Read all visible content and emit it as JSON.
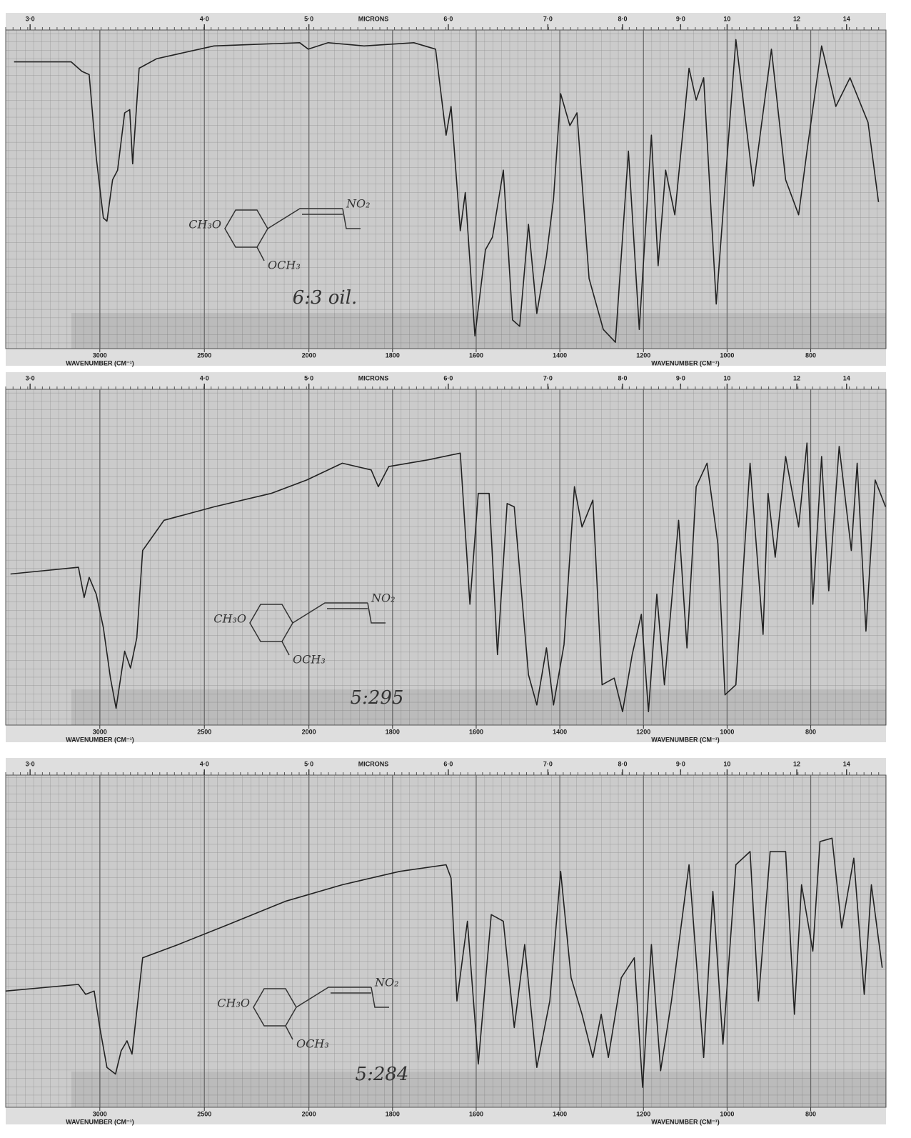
{
  "chart_data": [
    {
      "type": "line",
      "annotation": "6:3 oil.",
      "structure_labels": [
        "NO₂",
        "OCH₃",
        "CH₃O"
      ],
      "x_label": "WAVENUMBER (CM⁻¹)",
      "micron_label": "MICRONS",
      "xlim": [
        3450,
        620
      ],
      "ylim": [
        0,
        100
      ],
      "xticks": [
        3000,
        2500,
        2000,
        1800,
        1600,
        1400,
        1200,
        1000,
        800
      ],
      "micron_ticks": [
        {
          "value": 3,
          "label": "3·0"
        },
        {
          "value": 4,
          "label": "4·0"
        },
        {
          "value": 5,
          "label": "5·0"
        },
        {
          "value": 6,
          "label": "6·0"
        },
        {
          "value": 7,
          "label": "7·0"
        },
        {
          "value": 8,
          "label": "8·0"
        },
        {
          "value": 9,
          "label": "9·0"
        },
        10,
        12,
        14
      ],
      "color": "#222222",
      "x": [
        3410,
        3137,
        3085,
        3051,
        3017,
        2983,
        2966,
        2939,
        2915,
        2881,
        2857,
        2843,
        2812,
        2727,
        2454,
        2044,
        2003,
        1954,
        1868,
        1749,
        1697,
        1672,
        1660,
        1638,
        1626,
        1603,
        1578,
        1561,
        1535,
        1513,
        1496,
        1475,
        1455,
        1432,
        1415,
        1398,
        1376,
        1359,
        1330,
        1296,
        1267,
        1236,
        1210,
        1181,
        1165,
        1147,
        1125,
        1091,
        1074,
        1056,
        1026,
        979,
        937,
        894,
        860,
        829,
        809,
        774,
        740,
        706,
        663,
        638
      ],
      "values": [
        90,
        90,
        87,
        86,
        60,
        41,
        40,
        53,
        56,
        74,
        75,
        58,
        88,
        91,
        95,
        96,
        94,
        96,
        95,
        96,
        94,
        67,
        76,
        37,
        49,
        4,
        31,
        35,
        56,
        9,
        7,
        39,
        11,
        29,
        47,
        80,
        70,
        74,
        22,
        6,
        2,
        62,
        6,
        67,
        26,
        56,
        42,
        88,
        78,
        85,
        14,
        97,
        51,
        94,
        53,
        42,
        62,
        95,
        76,
        85,
        71,
        46
      ]
    },
    {
      "type": "line",
      "annotation": "5:295",
      "structure_labels": [
        "NO₂",
        "OCH₃",
        "CH₃O"
      ],
      "x_label": "WAVENUMBER (CM⁻¹)",
      "micron_label": "MICRONS",
      "xlim": [
        3450,
        620
      ],
      "ylim": [
        0,
        100
      ],
      "xticks": [
        3000,
        2500,
        2000,
        1800,
        1600,
        1400,
        1200,
        1000,
        800
      ],
      "micron_ticks": [
        {
          "value": 3,
          "label": "3·0"
        },
        {
          "value": 4,
          "label": "4·0"
        },
        {
          "value": 5,
          "label": "5·0"
        },
        {
          "value": 6,
          "label": "6·0"
        },
        {
          "value": 7,
          "label": "7·0"
        },
        {
          "value": 8,
          "label": "8·0"
        },
        {
          "value": 9,
          "label": "9·0"
        },
        10,
        12,
        14
      ],
      "color": "#222222",
      "x": [
        3427,
        3102,
        3075,
        3051,
        3017,
        2983,
        2949,
        2922,
        2881,
        2853,
        2823,
        2795,
        2693,
        2454,
        2181,
        2010,
        1920,
        1851,
        1834,
        1809,
        1715,
        1638,
        1615,
        1595,
        1569,
        1549,
        1526,
        1509,
        1475,
        1455,
        1432,
        1415,
        1390,
        1365,
        1347,
        1321,
        1299,
        1270,
        1250,
        1227,
        1205,
        1188,
        1168,
        1150,
        1116,
        1096,
        1074,
        1048,
        1022,
        1005,
        979,
        945,
        914,
        902,
        885,
        860,
        829,
        809,
        795,
        774,
        757,
        732,
        703,
        689,
        668,
        646,
        621
      ],
      "values": [
        45,
        47,
        38,
        44,
        39,
        29,
        14,
        5,
        22,
        17,
        26,
        52,
        61,
        65,
        69,
        73,
        78,
        76,
        71,
        77,
        79,
        81,
        36,
        69,
        69,
        21,
        66,
        65,
        15,
        6,
        23,
        6,
        24,
        71,
        59,
        67,
        12,
        14,
        4,
        21,
        33,
        4,
        39,
        12,
        61,
        23,
        71,
        78,
        54,
        9,
        12,
        78,
        27,
        69,
        50,
        80,
        59,
        84,
        36,
        80,
        40,
        83,
        52,
        78,
        28,
        73,
        65
      ]
    },
    {
      "type": "line",
      "annotation": "5:284",
      "structure_labels": [
        "NO₂",
        "OCH₃",
        "CH₃O"
      ],
      "x_label": "WAVENUMBER (CM⁻¹)",
      "micron_label": "MICRONS",
      "xlim": [
        3450,
        620
      ],
      "ylim": [
        0,
        100
      ],
      "xticks": [
        3000,
        2500,
        2000,
        1800,
        1600,
        1400,
        1200,
        1000,
        800
      ],
      "micron_ticks": [
        {
          "value": 3,
          "label": "3·0"
        },
        {
          "value": 4,
          "label": "4·0"
        },
        {
          "value": 5,
          "label": "5·0"
        },
        {
          "value": 6,
          "label": "6·0"
        },
        {
          "value": 7,
          "label": "7·0"
        },
        {
          "value": 8,
          "label": "8·0"
        },
        {
          "value": 9,
          "label": "9·0"
        },
        10,
        12,
        14
      ],
      "color": "#222222",
      "x": [
        3451,
        3102,
        3068,
        3027,
        3000,
        2966,
        2925,
        2898,
        2870,
        2846,
        2795,
        2625,
        2386,
        2113,
        1920,
        1783,
        1672,
        1660,
        1646,
        1621,
        1595,
        1564,
        1535,
        1509,
        1484,
        1455,
        1424,
        1398,
        1373,
        1347,
        1321,
        1301,
        1284,
        1253,
        1222,
        1202,
        1181,
        1159,
        1133,
        1091,
        1056,
        1034,
        1010,
        979,
        945,
        925,
        897,
        860,
        839,
        822,
        795,
        778,
        749,
        726,
        697,
        672,
        655,
        629
      ],
      "values": [
        35,
        37,
        34,
        35,
        24,
        12,
        10,
        17,
        20,
        16,
        45,
        49,
        55,
        62,
        67,
        71,
        73,
        69,
        32,
        56,
        13,
        58,
        56,
        24,
        49,
        12,
        32,
        71,
        39,
        28,
        15,
        28,
        15,
        39,
        45,
        6,
        49,
        11,
        32,
        73,
        15,
        65,
        19,
        73,
        77,
        32,
        77,
        77,
        28,
        67,
        47,
        80,
        81,
        54,
        75,
        34,
        67,
        42
      ]
    }
  ]
}
